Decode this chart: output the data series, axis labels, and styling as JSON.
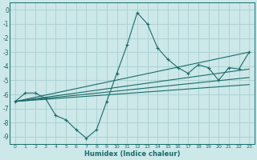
{
  "xlabel": "Humidex (Indice chaleur)",
  "bg_color": "#cce8e8",
  "grid_color": "#aad0d0",
  "line_color": "#1a6b6b",
  "spine_color": "#1a6b6b",
  "xlim": [
    -0.5,
    23.5
  ],
  "ylim": [
    -9.5,
    0.5
  ],
  "xticks": [
    0,
    1,
    2,
    3,
    4,
    5,
    6,
    7,
    8,
    9,
    10,
    11,
    12,
    13,
    14,
    15,
    16,
    17,
    18,
    19,
    20,
    21,
    22,
    23
  ],
  "yticks": [
    0,
    -1,
    -2,
    -3,
    -4,
    -5,
    -6,
    -7,
    -8,
    -9
  ],
  "series": [
    {
      "x": [
        0,
        1,
        2,
        3,
        4,
        5,
        6,
        7,
        8,
        9,
        10,
        11,
        12,
        13,
        14,
        15,
        16,
        17,
        18,
        19,
        20,
        21,
        22,
        23
      ],
      "y": [
        -6.5,
        -5.9,
        -5.9,
        -6.3,
        -7.5,
        -7.8,
        -8.5,
        -9.1,
        -8.5,
        -6.5,
        -4.5,
        -2.5,
        -0.2,
        -1.0,
        -2.7,
        -3.5,
        -4.1,
        -4.5,
        -3.9,
        -4.1,
        -5.0,
        -4.1,
        -4.2,
        -3.0
      ],
      "marker": true
    },
    {
      "x": [
        0,
        23
      ],
      "y": [
        -6.5,
        -3.0
      ],
      "marker": false
    },
    {
      "x": [
        0,
        23
      ],
      "y": [
        -6.5,
        -4.2
      ],
      "marker": false
    },
    {
      "x": [
        0,
        23
      ],
      "y": [
        -6.5,
        -4.8
      ],
      "marker": false
    },
    {
      "x": [
        0,
        23
      ],
      "y": [
        -6.5,
        -5.3
      ],
      "marker": false
    }
  ]
}
